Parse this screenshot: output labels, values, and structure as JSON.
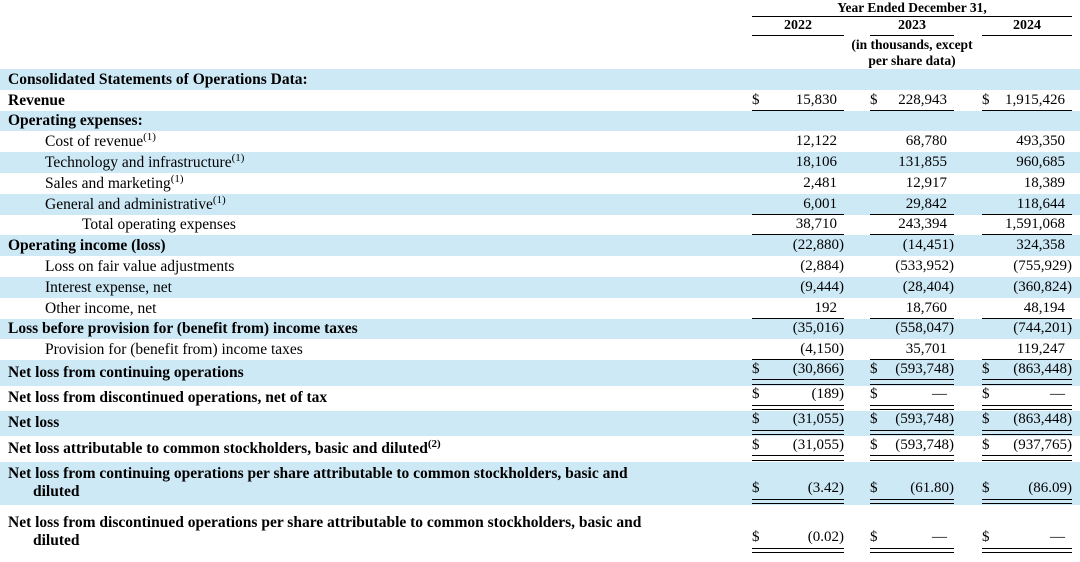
{
  "header": {
    "period_title": "Year Ended December 31,",
    "years": [
      "2022",
      "2023",
      "2024"
    ],
    "units_note_line1": "(in thousands, except",
    "units_note_line2": "per share data)"
  },
  "table": {
    "rows": [
      {
        "label": "Consolidated Statements of Operations Data:",
        "sup": ""
      },
      {
        "label": "Revenue",
        "sup": "",
        "values": [
          {
            "d": "$",
            "v": "15,830"
          },
          {
            "d": "$",
            "v": "228,943"
          },
          {
            "d": "$",
            "v": "1,915,426"
          }
        ]
      },
      {
        "label": "Operating expenses:",
        "sup": ""
      },
      {
        "label": "Cost of revenue",
        "sup": "(1)",
        "values": [
          {
            "d": "",
            "v": "12,122"
          },
          {
            "d": "",
            "v": "68,780"
          },
          {
            "d": "",
            "v": "493,350"
          }
        ]
      },
      {
        "label": "Technology and infrastructure",
        "sup": "(1)",
        "values": [
          {
            "d": "",
            "v": "18,106"
          },
          {
            "d": "",
            "v": "131,855"
          },
          {
            "d": "",
            "v": "960,685"
          }
        ]
      },
      {
        "label": "Sales and marketing",
        "sup": "(1)",
        "values": [
          {
            "d": "",
            "v": "2,481"
          },
          {
            "d": "",
            "v": "12,917"
          },
          {
            "d": "",
            "v": "18,389"
          }
        ]
      },
      {
        "label": "General and administrative",
        "sup": "(1)",
        "values": [
          {
            "d": "",
            "v": "6,001"
          },
          {
            "d": "",
            "v": "29,842"
          },
          {
            "d": "",
            "v": "118,644"
          }
        ]
      },
      {
        "label": "Total operating expenses",
        "sup": "",
        "values": [
          {
            "d": "",
            "v": "38,710"
          },
          {
            "d": "",
            "v": "243,394"
          },
          {
            "d": "",
            "v": "1,591,068"
          }
        ]
      },
      {
        "label": "Operating income (loss)",
        "sup": "",
        "values": [
          {
            "d": "",
            "v": "(22,880)"
          },
          {
            "d": "",
            "v": "(14,451)"
          },
          {
            "d": "",
            "v": "324,358"
          }
        ]
      },
      {
        "label": "Loss on fair value adjustments",
        "sup": "",
        "values": [
          {
            "d": "",
            "v": "(2,884)"
          },
          {
            "d": "",
            "v": "(533,952)"
          },
          {
            "d": "",
            "v": "(755,929)"
          }
        ]
      },
      {
        "label": "Interest expense, net",
        "sup": "",
        "values": [
          {
            "d": "",
            "v": "(9,444)"
          },
          {
            "d": "",
            "v": "(28,404)"
          },
          {
            "d": "",
            "v": "(360,824)"
          }
        ]
      },
      {
        "label": "Other income, net",
        "sup": "",
        "values": [
          {
            "d": "",
            "v": "192"
          },
          {
            "d": "",
            "v": "18,760"
          },
          {
            "d": "",
            "v": "48,194"
          }
        ]
      },
      {
        "label": "Loss before provision for (benefit from) income taxes",
        "sup": "",
        "values": [
          {
            "d": "",
            "v": "(35,016)"
          },
          {
            "d": "",
            "v": "(558,047)"
          },
          {
            "d": "",
            "v": "(744,201)"
          }
        ]
      },
      {
        "label": "Provision for (benefit from) income taxes",
        "sup": "",
        "values": [
          {
            "d": "",
            "v": "(4,150)"
          },
          {
            "d": "",
            "v": "35,701"
          },
          {
            "d": "",
            "v": "119,247"
          }
        ]
      },
      {
        "label": "Net loss from continuing operations",
        "sup": "",
        "values": [
          {
            "d": "$",
            "v": "(30,866)"
          },
          {
            "d": "$",
            "v": "(593,748)"
          },
          {
            "d": "$",
            "v": "(863,448)"
          }
        ]
      },
      {
        "label": "Net loss from discontinued operations, net of tax",
        "sup": "",
        "values": [
          {
            "d": "$",
            "v": "(189)"
          },
          {
            "d": "$",
            "v": "—"
          },
          {
            "d": "$",
            "v": "—"
          }
        ]
      },
      {
        "label": "Net loss",
        "sup": "",
        "values": [
          {
            "d": "$",
            "v": "(31,055)"
          },
          {
            "d": "$",
            "v": "(593,748)"
          },
          {
            "d": "$",
            "v": "(863,448)"
          }
        ]
      },
      {
        "label": "Net loss attributable to common stockholders, basic and diluted",
        "sup": "(2)",
        "values": [
          {
            "d": "$",
            "v": "(31,055)"
          },
          {
            "d": "$",
            "v": "(593,748)"
          },
          {
            "d": "$",
            "v": "(937,765)"
          }
        ]
      },
      {
        "label": "Net loss from continuing operations per share attributable to common stockholders, basic and",
        "label2": "diluted",
        "sup": "",
        "values": [
          {
            "d": "$",
            "v": "(3.42)"
          },
          {
            "d": "$",
            "v": "(61.80)"
          },
          {
            "d": "$",
            "v": "(86.09)"
          }
        ]
      },
      {
        "label": "Net loss from discontinued operations per share attributable to common stockholders, basic and",
        "label2": "diluted",
        "sup": "",
        "values": [
          {
            "d": "$",
            "v": "(0.02)"
          },
          {
            "d": "$",
            "v": "—"
          },
          {
            "d": "$",
            "v": "—"
          }
        ]
      }
    ]
  },
  "colors": {
    "row_highlight": "#cee9f6",
    "text": "#000000",
    "rule": "#000000"
  }
}
